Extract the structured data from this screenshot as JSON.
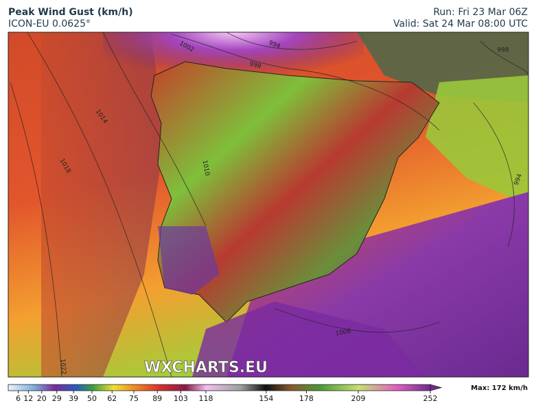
{
  "header": {
    "title": "Peak Wind Gust (km/h)",
    "model": "ICON-EU 0.0625°",
    "run": "Run: Fri 23 Mar 06Z",
    "valid": "Valid: Sat 24 Mar 08:00 UTC"
  },
  "watermark": "WXCHARTS.EU",
  "isobars": [
    994,
    998,
    998,
    1002,
    1006,
    1010,
    1014,
    1018,
    1022,
    994
  ],
  "colorbar": {
    "ticks": [
      6,
      12,
      20,
      29,
      39,
      50,
      62,
      75,
      89,
      103,
      118,
      154,
      178,
      209,
      252
    ],
    "max_label": "Max: 172 km/h"
  }
}
